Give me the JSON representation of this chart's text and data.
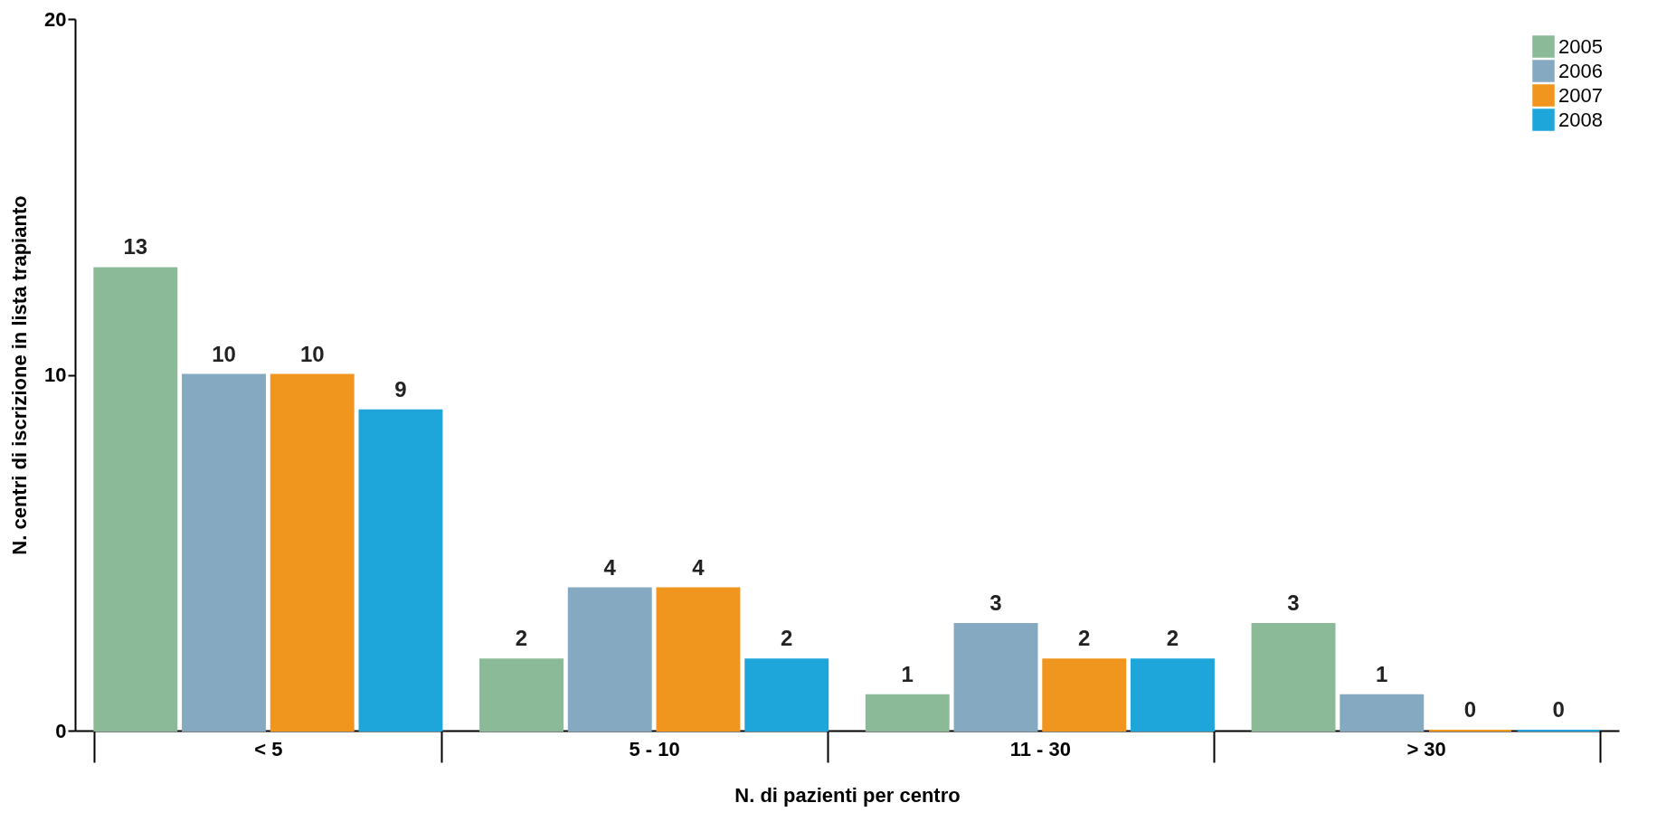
{
  "chart_data": {
    "type": "bar",
    "xlabel": "N. di pazienti per centro",
    "ylabel": "N. centri di iscrizione in lista trapianto",
    "categories": [
      "< 5",
      "5 - 10",
      "11 - 30",
      "> 30"
    ],
    "series": [
      {
        "name": "2005",
        "color": "#8aba98",
        "values": [
          13,
          2,
          1,
          3
        ]
      },
      {
        "name": "2006",
        "color": "#84a9c0",
        "values": [
          10,
          4,
          3,
          1
        ]
      },
      {
        "name": "2007",
        "color": "#f0961e",
        "values": [
          10,
          4,
          2,
          0
        ]
      },
      {
        "name": "2008",
        "color": "#1ea5da",
        "values": [
          9,
          2,
          2,
          0
        ]
      }
    ],
    "ylim": [
      0,
      20
    ],
    "yticks": [
      0,
      10,
      20
    ],
    "grid": false,
    "legend": "top right",
    "data_labels": true
  }
}
